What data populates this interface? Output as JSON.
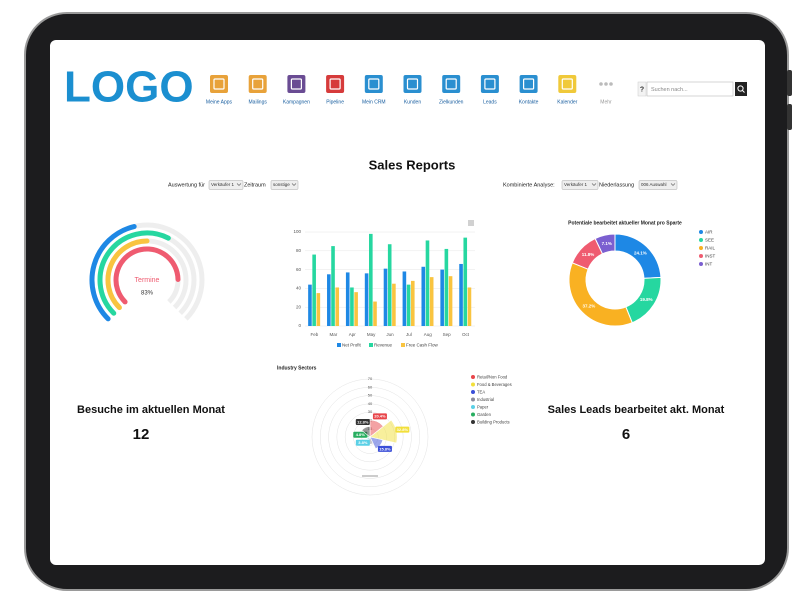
{
  "header": {
    "logo": "LOGO",
    "nav": [
      "Meine Apps",
      "Mailings",
      "Kampagnen",
      "Pipeline",
      "Mein CRM",
      "Kunden",
      "Zielkunden",
      "Leads",
      "Kontakte",
      "Kalender",
      "Mehr"
    ],
    "help": "?",
    "search_placeholder": "Suchen nach..."
  },
  "title": "Sales Reports",
  "filters": {
    "left_label": "Auswertung für",
    "left_select": "Verkäufer 1",
    "period_label": "Zeitraum",
    "period_select": "sonstige",
    "right_label": "Kombinierte Analyse:",
    "right_select": "Verkäufer 1",
    "branch_label": "Niederlassung",
    "branch_select": "006 Auswahl"
  },
  "radial": {
    "center_label": "Termine",
    "rings": [
      {
        "color": "#1e88e5",
        "value": 45
      },
      {
        "color": "#26d7a0",
        "value": 60
      },
      {
        "color": "#f9c440",
        "value": 50
      },
      {
        "color": "#ef5b70",
        "value": 83,
        "value_label": "83%"
      }
    ]
  },
  "bar_chart": {
    "type": "bar",
    "categories": [
      "Feb",
      "Mar",
      "Apr",
      "May",
      "Jun",
      "Jul",
      "Aug",
      "Sep",
      "Oct"
    ],
    "series": [
      {
        "name": "Net Profit",
        "color": "#1e88e5",
        "values": [
          44,
          55,
          57,
          56,
          61,
          58,
          63,
          60,
          66
        ]
      },
      {
        "name": "Revenue",
        "color": "#26d7a0",
        "values": [
          76,
          85,
          41,
          98,
          87,
          44,
          91,
          82,
          94
        ]
      },
      {
        "name": "Free Cash Flow",
        "color": "#f9c440",
        "values": [
          35,
          41,
          36,
          26,
          45,
          48,
          52,
          53,
          41
        ]
      }
    ],
    "ylim": [
      0,
      100
    ],
    "yticks": [
      0,
      20,
      40,
      60,
      80,
      100
    ],
    "grid": true
  },
  "donut": {
    "type": "donut",
    "title": "Potentiale bearbeitet aktueller Monat pro Sparte",
    "categories": [
      "AIR",
      "SEE",
      "RAIL",
      "INST",
      "INT"
    ],
    "colors": [
      "#1e88e5",
      "#26d7a0",
      "#f9b122",
      "#ef5b70",
      "#7b5fd0"
    ],
    "values": [
      24.1,
      19.8,
      37.2,
      11.8,
      7.1
    ],
    "value_labels": [
      "24.1%",
      "19.8%",
      "37.2%",
      "11.8%",
      "7.1%"
    ]
  },
  "polar": {
    "type": "polarArea",
    "title": "Industry Sectors",
    "rlim": [
      0,
      70
    ],
    "rticks": [
      10,
      20,
      30,
      40,
      50,
      60,
      70
    ],
    "slices": [
      {
        "name": "Retail/Non Food",
        "color": "#e8454a",
        "value": 20.4,
        "value_label": "20.4%"
      },
      {
        "name": "Food & Beverages",
        "color": "#f2df3a",
        "value": 32.8,
        "value_label": "32.8%"
      },
      {
        "name": "TEA",
        "color": "#3b4fd8",
        "value": 15.8,
        "value_label": "15.8%"
      },
      {
        "name": "Industrial",
        "color": "#8a8a9a",
        "value": 8.8
      },
      {
        "name": "Paper",
        "color": "#5bd0e6",
        "value": 3.8,
        "value_label": "3.8%"
      },
      {
        "name": "Garden",
        "color": "#27ae60",
        "value": 4.8,
        "value_label": "4.8%"
      },
      {
        "name": "Building Products",
        "color": "#333333",
        "value": 12.8,
        "value_label": "12.8%"
      }
    ]
  },
  "kpis": [
    {
      "label": "Besuche im aktuellen Monat",
      "value": "12"
    },
    {
      "label": "Sales Leads bearbeitet akt. Monat",
      "value": "6"
    }
  ]
}
